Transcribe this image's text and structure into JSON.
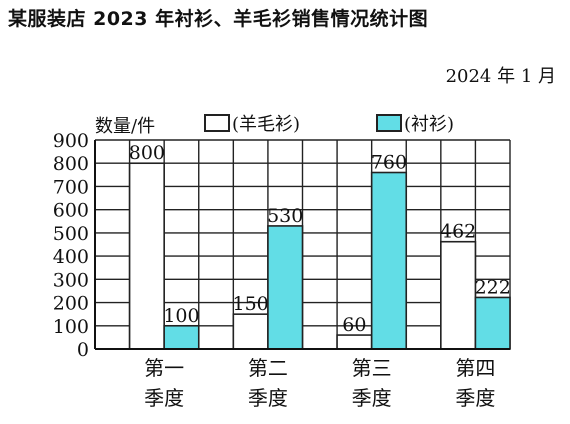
{
  "title": "某服装店 2023 年衬衫、羊毛衫销售情况统计图",
  "date": "2024 年 1 月",
  "chart_data": {
    "type": "bar",
    "ylabel": "数量/件",
    "categories": [
      [
        "第一",
        "季度"
      ],
      [
        "第二",
        "季度"
      ],
      [
        "第三",
        "季度"
      ],
      [
        "第四",
        "季度"
      ]
    ],
    "series": [
      {
        "name": "(羊毛衫)",
        "values": [
          800,
          150,
          60,
          462
        ],
        "color": "#ffffff"
      },
      {
        "name": "(衬衫)",
        "values": [
          100,
          530,
          760,
          222
        ],
        "color": "#62dde6"
      }
    ],
    "ylim": [
      0,
      900
    ],
    "yticks": [
      0,
      100,
      200,
      300,
      400,
      500,
      600,
      700,
      800,
      900
    ],
    "grid": true,
    "legend": "top"
  }
}
